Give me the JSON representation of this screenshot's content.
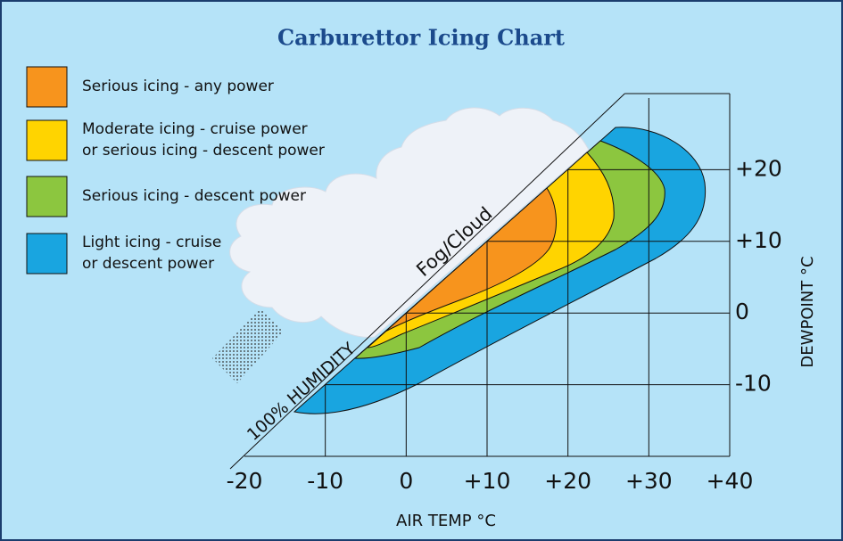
{
  "chart_data": {
    "type": "icing",
    "title": "Carburettor Icing Chart",
    "regions": [
      {
        "name": [
          "Serious icing - any power"
        ],
        "color": "#f7941d"
      },
      {
        "name": [
          "Moderate icing - cruise power",
          "or serious icing - descent power"
        ],
        "color": "#ffd400"
      },
      {
        "name": [
          "Serious icing - descent power"
        ],
        "color": "#8cc63f"
      },
      {
        "name": [
          "Light icing - cruise",
          "or descent power"
        ],
        "color": "#19a5e0"
      }
    ],
    "annotations": [
      "Fog/Cloud",
      "100% HUMIDITY"
    ],
    "x_label": "AIR TEMP  °C",
    "y_label": "DEWPOINT  °C",
    "xlim": [
      -20,
      40
    ],
    "ylim": [
      -20,
      30
    ],
    "xticks": [
      -20,
      -10,
      0,
      {
        "value": 10,
        "label": "+10"
      },
      {
        "value": 20,
        "label": "+20"
      },
      {
        "value": 30,
        "label": "+30"
      },
      {
        "value": 40,
        "label": "+40"
      }
    ],
    "yticks": [
      -10,
      0,
      {
        "value": 10,
        "label": "+10"
      },
      {
        "value": 20,
        "label": "+20"
      }
    ]
  }
}
